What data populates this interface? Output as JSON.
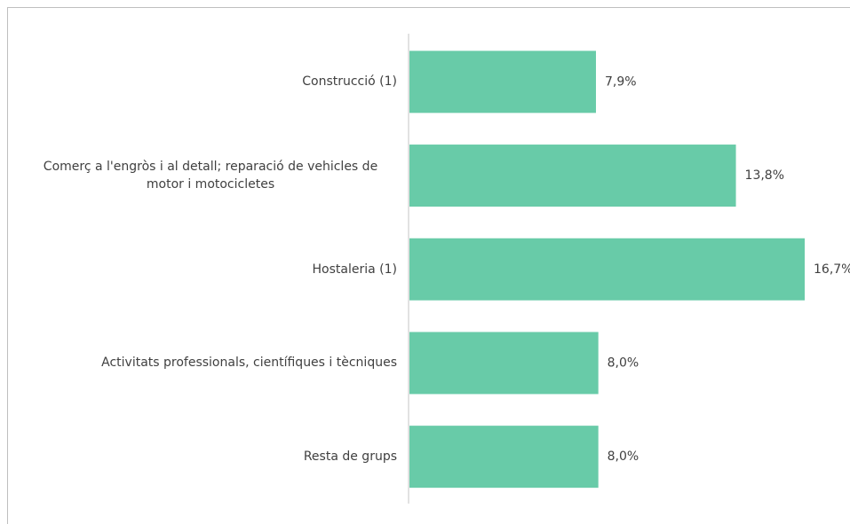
{
  "chart_data": {
    "type": "bar",
    "orientation": "horizontal",
    "categories": [
      "Construcció (1)",
      "Comerç a l'engròs i al detall; reparació de vehicles de motor i motocicletes",
      "Hostaleria (1)",
      "Activitats professionals, científiques i tècniques",
      "Resta de grups"
    ],
    "values": [
      7.9,
      13.8,
      16.7,
      8.0,
      8.0
    ],
    "value_labels": [
      "7,9%",
      "13,8%",
      "16,7%",
      "8,0%",
      "8,0%"
    ],
    "color": "#68cba8"
  }
}
